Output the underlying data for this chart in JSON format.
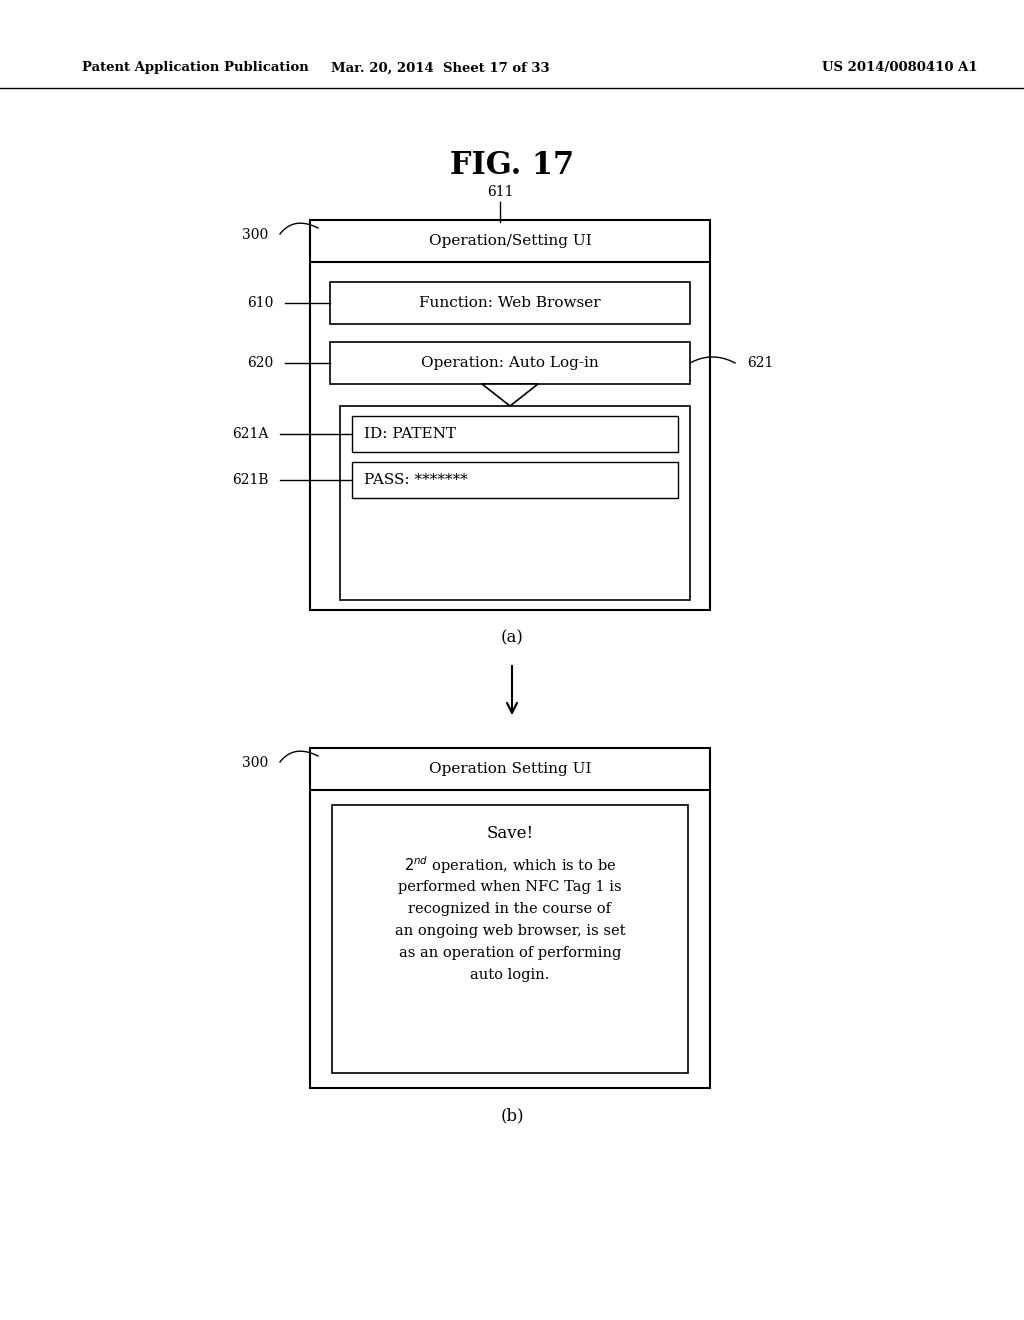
{
  "bg_color": "#ffffff",
  "header_text": "Patent Application Publication",
  "header_date": "Mar. 20, 2014  Sheet 17 of 33",
  "header_patent": "US 2014/0080410 A1",
  "fig_title": "FIG. 17",
  "diagram_a": {
    "label": "(a)",
    "title_bar_text": "Operation/Setting UI",
    "label_300": "300",
    "label_611": "611",
    "row1_text": "Function: Web Browser",
    "row1_label": "610",
    "row2_text": "Operation: Auto Log-in",
    "row2_label": "620",
    "row2_right_label": "621",
    "sub_box_label_a": "621A",
    "sub_box_label_b": "621B",
    "sub_row1_text": "ID: PATENT",
    "sub_row2_text": "PASS: *******"
  },
  "diagram_b": {
    "label": "(b)",
    "title_bar_text": "Operation Setting UI",
    "label_300": "300",
    "save_text": "Save!",
    "body_lines": [
      "2nd operation, which is to be",
      "performed when NFC Tag 1 is",
      "recognized in the course of",
      "an ongoing web browser, is set",
      "as an operation of performing",
      "auto login."
    ]
  }
}
